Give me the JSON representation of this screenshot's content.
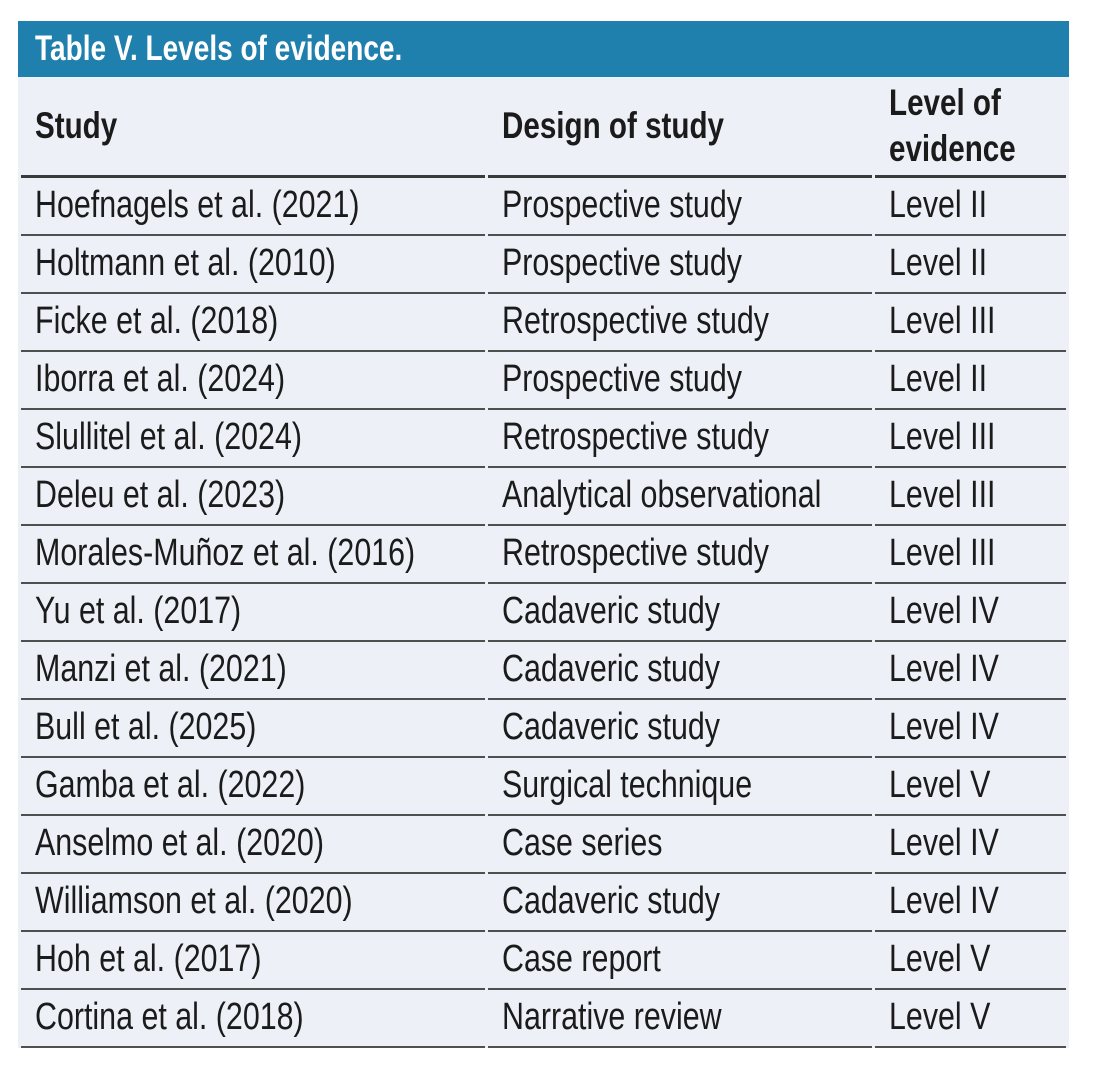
{
  "page": {
    "background": "#ffffff"
  },
  "colors": {
    "title_bar": "#1f7fad",
    "title_text": "#ffffff",
    "row_background": "#edf0f7",
    "body_text": "#1b1b1b",
    "row_divider": "#4f4f4f",
    "header_divider": "#3a3a3a"
  },
  "table": {
    "title": "Table V. Levels of evidence.",
    "headers": [
      "Study",
      "Design of study",
      "Level of evidence"
    ],
    "rows": [
      {
        "study": "Hoefnagels et al. (2021)",
        "design": "Prospective study",
        "level": "Level II"
      },
      {
        "study": "Holtmann et al. (2010)",
        "design": "Prospective study",
        "level": "Level II"
      },
      {
        "study": "Ficke et al. (2018)",
        "design": "Retrospective study",
        "level": "Level III"
      },
      {
        "study": "Iborra et al. (2024)",
        "design": "Prospective study",
        "level": "Level II"
      },
      {
        "study": "Slullitel et al. (2024)",
        "design": "Retrospective study",
        "level": "Level III"
      },
      {
        "study": "Deleu et al. (2023)",
        "design": "Analytical observational",
        "level": "Level III"
      },
      {
        "study": "Morales-Muñoz et al. (2016)",
        "design": "Retrospective study",
        "level": "Level III"
      },
      {
        "study": "Yu et al. (2017)",
        "design": "Cadaveric study",
        "level": "Level IV"
      },
      {
        "study": "Manzi et al. (2021)",
        "design": "Cadaveric study",
        "level": "Level IV"
      },
      {
        "study": "Bull et al. (2025)",
        "design": "Cadaveric study",
        "level": "Level IV"
      },
      {
        "study": "Gamba et al. (2022)",
        "design": "Surgical technique",
        "level": "Level V"
      },
      {
        "study": "Anselmo et al. (2020)",
        "design": "Case series",
        "level": "Level IV"
      },
      {
        "study": "Williamson et al. (2020)",
        "design": "Cadaveric study",
        "level": "Level IV"
      },
      {
        "study": "Hoh et al. (2017)",
        "design": "Case report",
        "level": "Level V"
      },
      {
        "study": "Cortina et al. (2018)",
        "design": "Narrative review",
        "level": "Level V"
      }
    ]
  }
}
